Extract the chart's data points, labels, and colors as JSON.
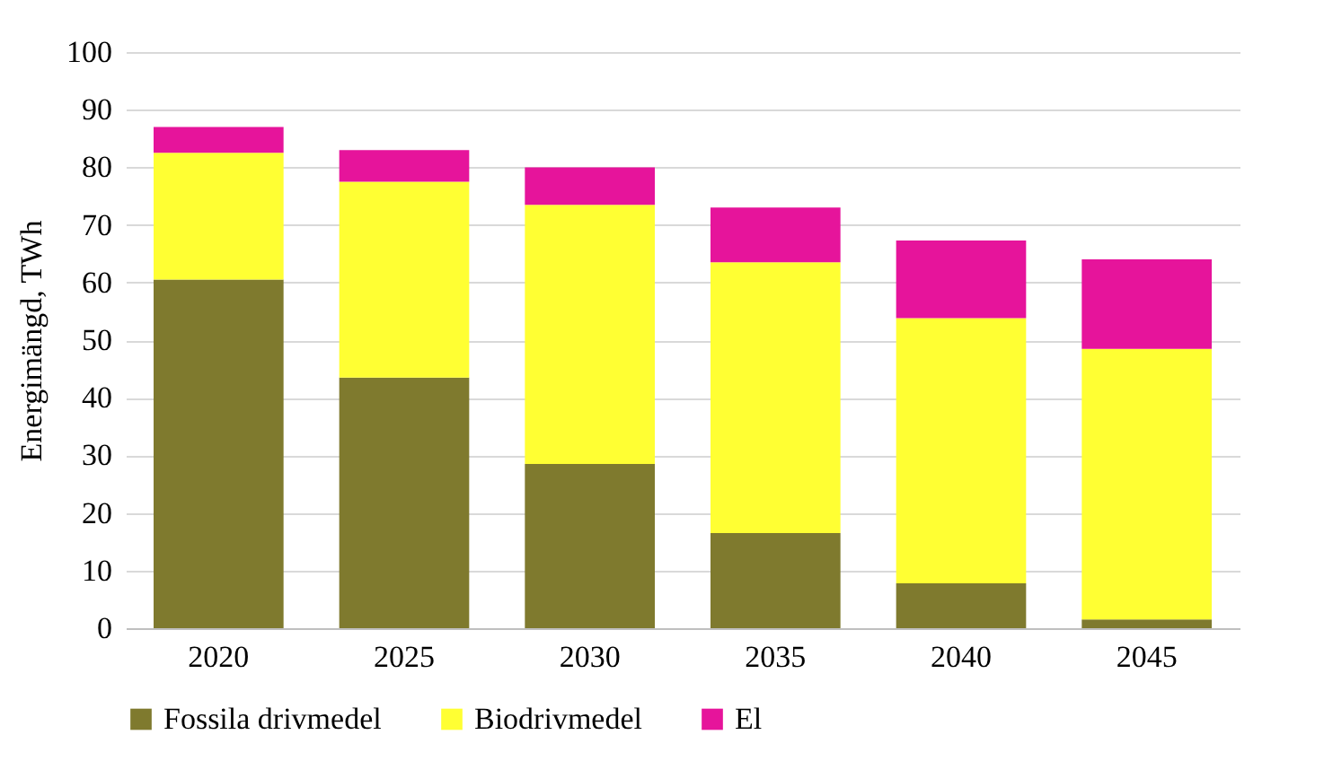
{
  "chart_data": {
    "type": "bar",
    "stacked": true,
    "ylabel": "Energimängd, TWh",
    "categories": [
      "2020",
      "2025",
      "2030",
      "2035",
      "2040",
      "2045"
    ],
    "series": [
      {
        "name": "Fossila drivmedel",
        "color": "#7f7a2e",
        "values": [
          60.5,
          43.5,
          28.5,
          16.5,
          7.8,
          1.5
        ]
      },
      {
        "name": "Biodrivmedel",
        "color": "#ffff33",
        "values": [
          22,
          34,
          45,
          47,
          46,
          47
        ]
      },
      {
        "name": "El",
        "color": "#e6149b",
        "values": [
          4.5,
          5.5,
          6.5,
          9.5,
          13.5,
          15.5
        ]
      }
    ],
    "ylim": [
      0,
      100
    ],
    "yticks": [
      0,
      10,
      20,
      30,
      40,
      50,
      60,
      70,
      80,
      90,
      100
    ],
    "grid": "y",
    "legend": "bottom"
  }
}
